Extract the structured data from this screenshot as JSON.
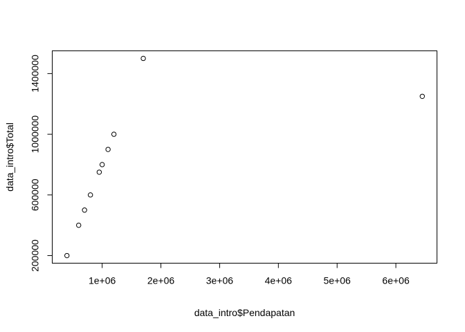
{
  "chart_data": {
    "type": "scatter",
    "title": "",
    "xlabel": "data_intro$Pendapatan",
    "ylabel": "data_intro$Total",
    "xlim": [
      150000,
      6700000
    ],
    "ylim": [
      150000,
      1550000
    ],
    "x_ticks": [
      1000000,
      2000000,
      3000000,
      4000000,
      5000000,
      6000000
    ],
    "x_tick_labels": [
      "1e+06",
      "2e+06",
      "3e+06",
      "4e+06",
      "5e+06",
      "6e+06"
    ],
    "y_ticks": [
      200000,
      600000,
      1000000,
      1400000
    ],
    "y_tick_labels": [
      "200000",
      "600000",
      "1000000",
      "1400000"
    ],
    "grid": false,
    "legend": "none",
    "points": [
      {
        "x": 400000,
        "y": 200000
      },
      {
        "x": 600000,
        "y": 400000
      },
      {
        "x": 700000,
        "y": 500000
      },
      {
        "x": 800000,
        "y": 600000
      },
      {
        "x": 950000,
        "y": 750000
      },
      {
        "x": 1000000,
        "y": 800000
      },
      {
        "x": 1100000,
        "y": 900000
      },
      {
        "x": 1200000,
        "y": 1000000
      },
      {
        "x": 1700000,
        "y": 1500000
      },
      {
        "x": 6450000,
        "y": 1250000
      }
    ]
  }
}
